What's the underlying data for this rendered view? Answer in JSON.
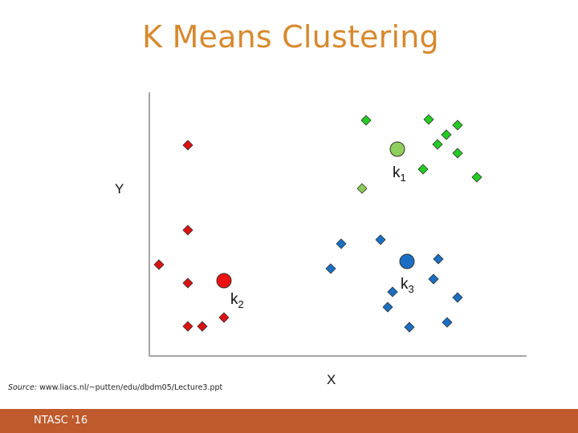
{
  "title": "K Means Clustering",
  "axes": {
    "y_label": "Y",
    "x_label": "X"
  },
  "source": {
    "prefix": "Source:",
    "text": "www.liacs.nl/~putten/edu/dbdm05/Lecture3.ppt"
  },
  "footer": {
    "text": "NTASC '16",
    "color": "#bf5a2c"
  },
  "colors": {
    "title": "#d7892e",
    "red_cluster": "#dd1111",
    "green_cluster": "#22cc22",
    "blue_cluster": "#1a6fc4",
    "light_green": "#88cc55",
    "centroid_green": "#8dcf5a"
  },
  "centroids": [
    {
      "name": "k",
      "subscript": "1",
      "color": "#8dcf5a"
    },
    {
      "name": "k",
      "subscript": "2",
      "color": "#ee1111"
    },
    {
      "name": "k",
      "subscript": "3",
      "color": "#1a6fc4"
    }
  ],
  "clusters": {
    "red": {
      "count": 7
    },
    "green": {
      "count": 8
    },
    "light_green": {
      "count": 1
    },
    "blue": {
      "count": 11
    }
  }
}
